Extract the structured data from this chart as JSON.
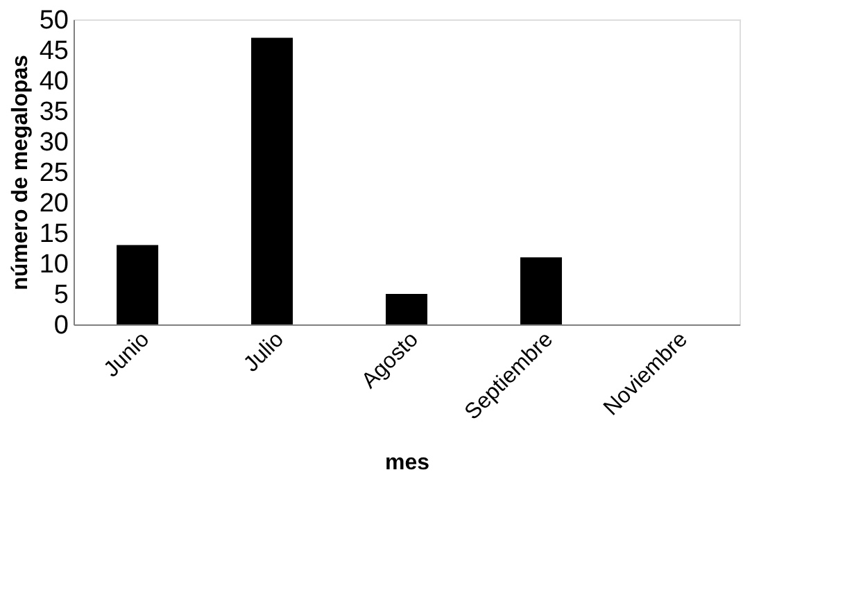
{
  "chart_data": {
    "type": "bar",
    "xlabel": "mes",
    "ylabel": "número de megalopas",
    "categories": [
      "Junio",
      "Julio",
      "Agosto",
      "Septiembre",
      "Noviembre"
    ],
    "values": [
      13,
      47,
      5,
      11,
      0
    ],
    "color": "#000000",
    "ylim": [
      0,
      50
    ],
    "yticks": [
      0,
      5,
      10,
      15,
      20,
      25,
      30,
      35,
      40,
      45,
      50
    ],
    "grid": false
  }
}
